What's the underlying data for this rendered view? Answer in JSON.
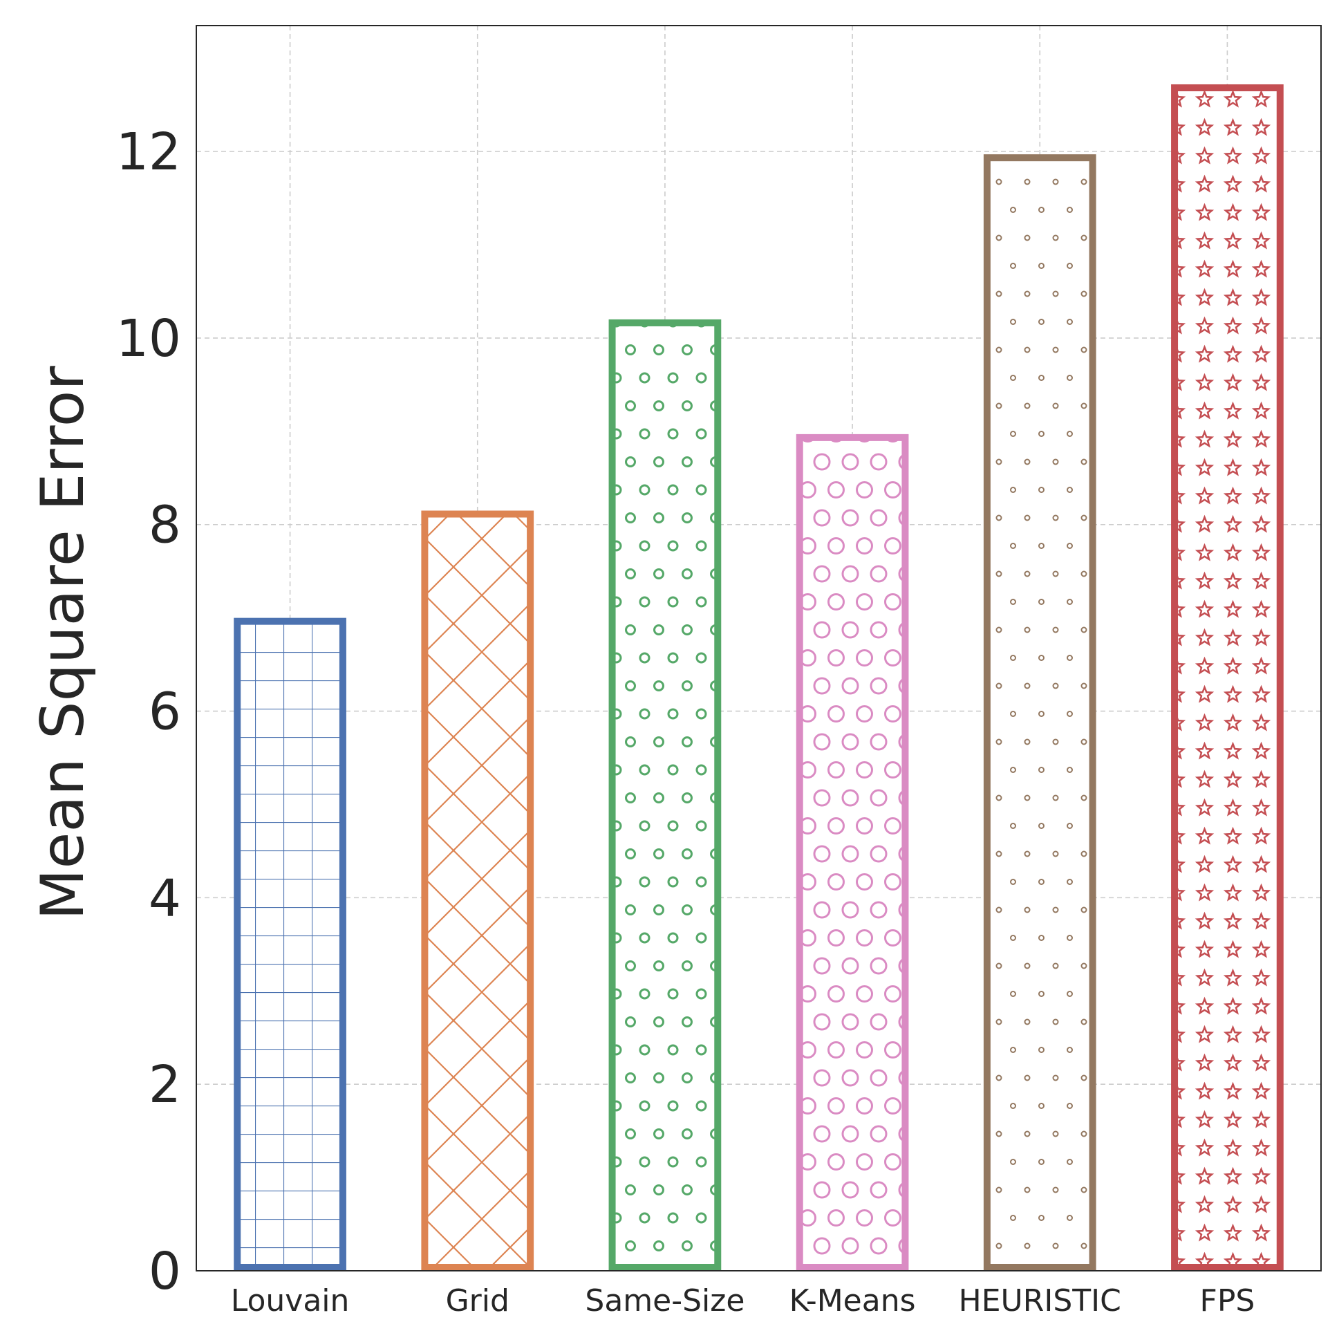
{
  "chart_data": {
    "type": "bar",
    "title": "",
    "xlabel": "",
    "ylabel": "Mean Square Error",
    "ylim": [
      0,
      13.35
    ],
    "yticks": [
      0,
      2,
      4,
      6,
      8,
      10,
      12
    ],
    "grid": true,
    "categories": [
      "Louvain",
      "Grid",
      "Same-Size",
      "K-Means",
      "HEURISTIC",
      "FPS"
    ],
    "values": [
      7.0,
      8.15,
      10.2,
      8.97,
      11.97,
      12.72
    ],
    "colors": [
      "#4c72b0",
      "#dd8452",
      "#55a868",
      "#da8bc3",
      "#937860",
      "#c44e52"
    ],
    "hatches": [
      "grid",
      "crosshatch",
      "small-circles",
      "big-circles",
      "dots",
      "stars"
    ]
  }
}
